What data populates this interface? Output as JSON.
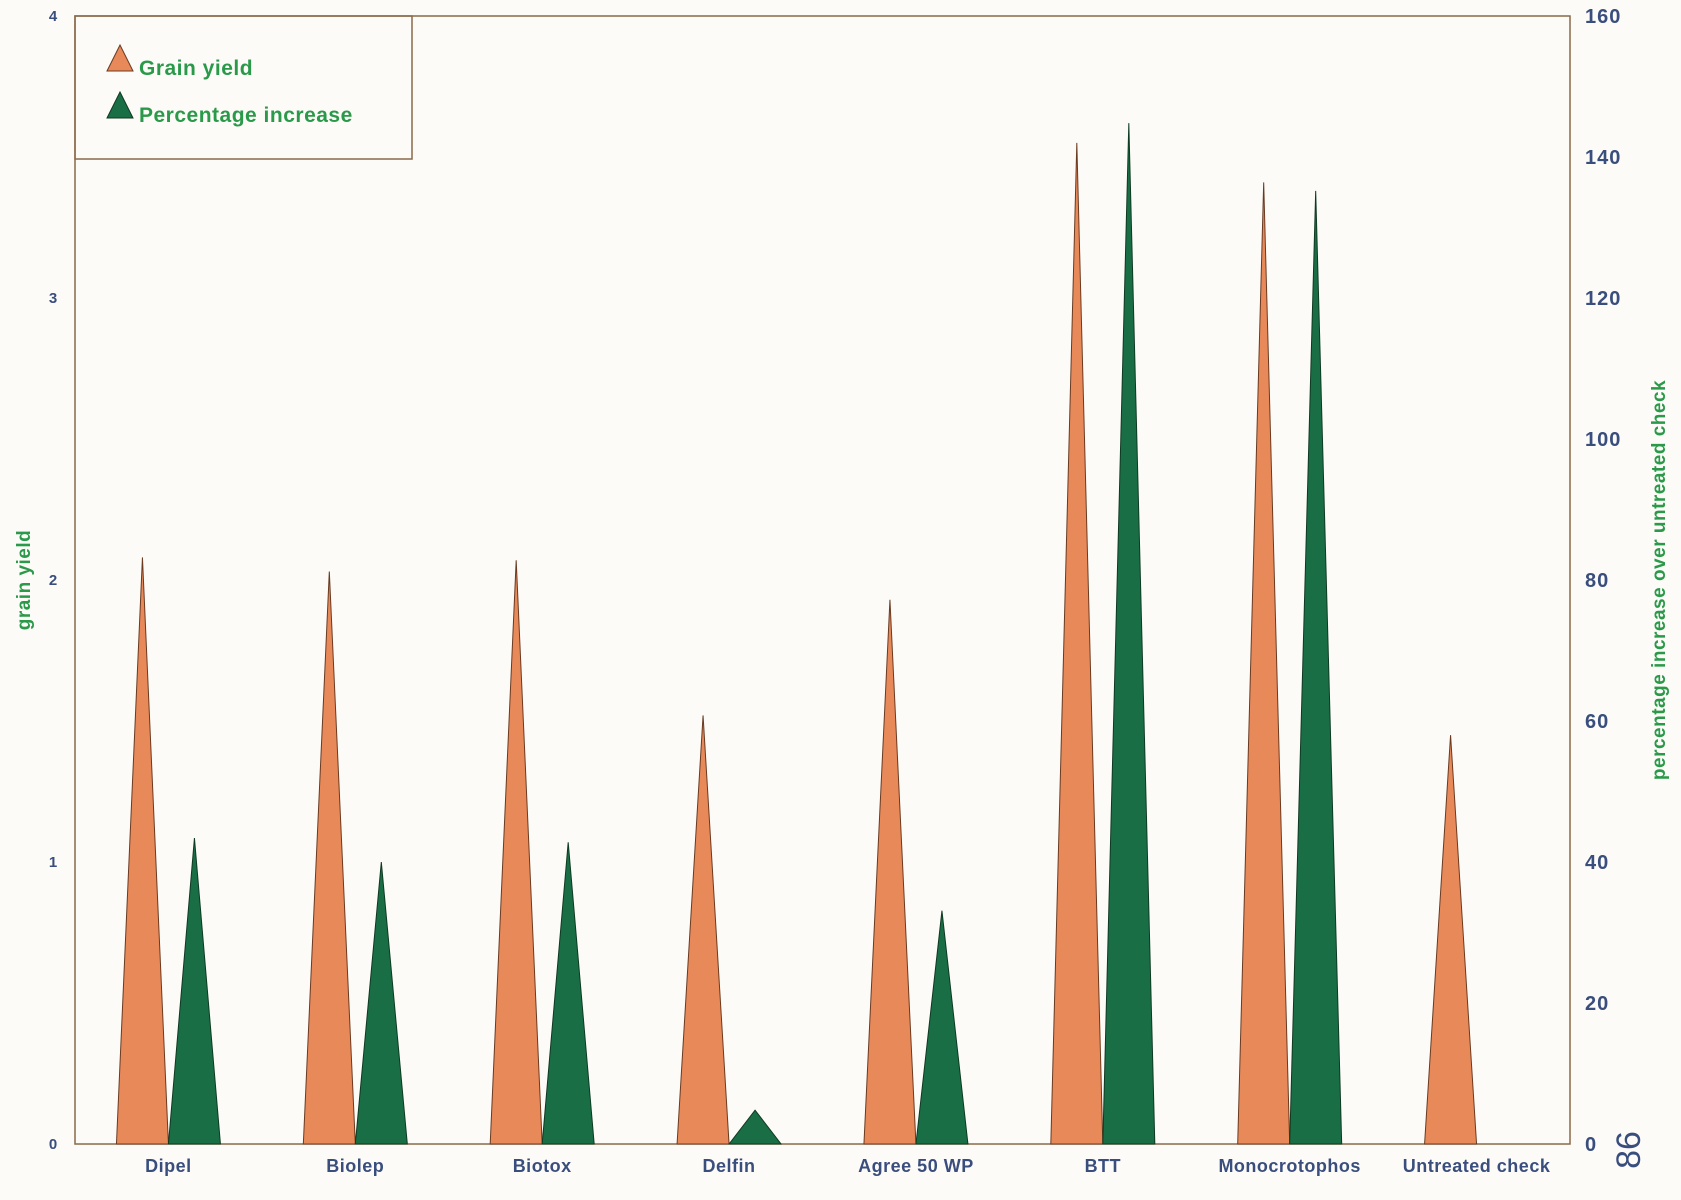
{
  "chart_data": {
    "type": "bar",
    "categories": [
      "Dipel",
      "Biolep",
      "Biotox",
      "Delfin",
      "Agree 50 WP",
      "BTT",
      "Monocrotophos",
      "Untreated check"
    ],
    "series": [
      {
        "name": "Grain yield",
        "axis": "left",
        "color": "#e8895a",
        "values": [
          2.08,
          2.03,
          2.07,
          1.52,
          1.93,
          3.55,
          3.41,
          1.45
        ]
      },
      {
        "name": "Percentage increase",
        "axis": "right",
        "color": "#1a6e45",
        "values": [
          43.4,
          40.0,
          42.8,
          4.8,
          33.1,
          144.8,
          135.2,
          null
        ]
      }
    ],
    "ylabel": "grain yield",
    "ylabel_right": "percentage increase over untreated check",
    "ylim": [
      0,
      4
    ],
    "ylim_right": [
      0,
      160
    ],
    "yticks": [
      "0",
      "1",
      "2",
      "3",
      "4"
    ],
    "yticks_right": [
      "0",
      "20",
      "40",
      "60",
      "80",
      "100",
      "120",
      "140",
      "160"
    ],
    "legend_position": "top-left",
    "grid": false,
    "mark_shape": "triangle"
  },
  "page_number": "86"
}
